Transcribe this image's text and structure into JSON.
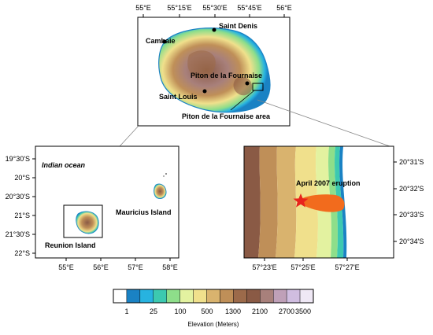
{
  "top_map": {
    "x_ticks": [
      "55°E",
      "55°15'E",
      "55°30'E",
      "55°45'E",
      "56°E"
    ],
    "places": [
      {
        "label": "Saint Denis"
      },
      {
        "label": "Cambaie"
      },
      {
        "label": "Piton de la Fournaise"
      },
      {
        "label": "Saint Louis"
      }
    ],
    "area_label": "Piton de la Fournaise area"
  },
  "left_map": {
    "sea_label": "Indian ocean",
    "y_ticks": [
      "19°30'S",
      "20°S",
      "20°30'S",
      "21°S",
      "21°30'S",
      "22°S"
    ],
    "x_ticks": [
      "55°E",
      "56°E",
      "57°E",
      "58°E"
    ],
    "island_labels": [
      "Mauricius Island",
      "Reunion Island"
    ]
  },
  "right_map": {
    "y_ticks": [
      "20°31'S",
      "20°32'S",
      "20°33'S",
      "20°34'S"
    ],
    "x_ticks": [
      "57°23'E",
      "57°25'E",
      "57°27'E"
    ],
    "event_label": "April 2007 eruption"
  },
  "legend": {
    "title": "Elevation (Meters)",
    "ticks": [
      "1",
      "25",
      "100",
      "500",
      "1300",
      "2100",
      "2700",
      "3500"
    ],
    "colors": [
      "#ffffff",
      "#1a82c4",
      "#27b3e0",
      "#3cc9b0",
      "#8ede8a",
      "#e3f2a0",
      "#f0e08c",
      "#d9b36e",
      "#bf8f58",
      "#9c6a4a",
      "#8a5a45",
      "#a8807b",
      "#bfa0b8",
      "#d0bde0",
      "#efe8f5"
    ]
  }
}
